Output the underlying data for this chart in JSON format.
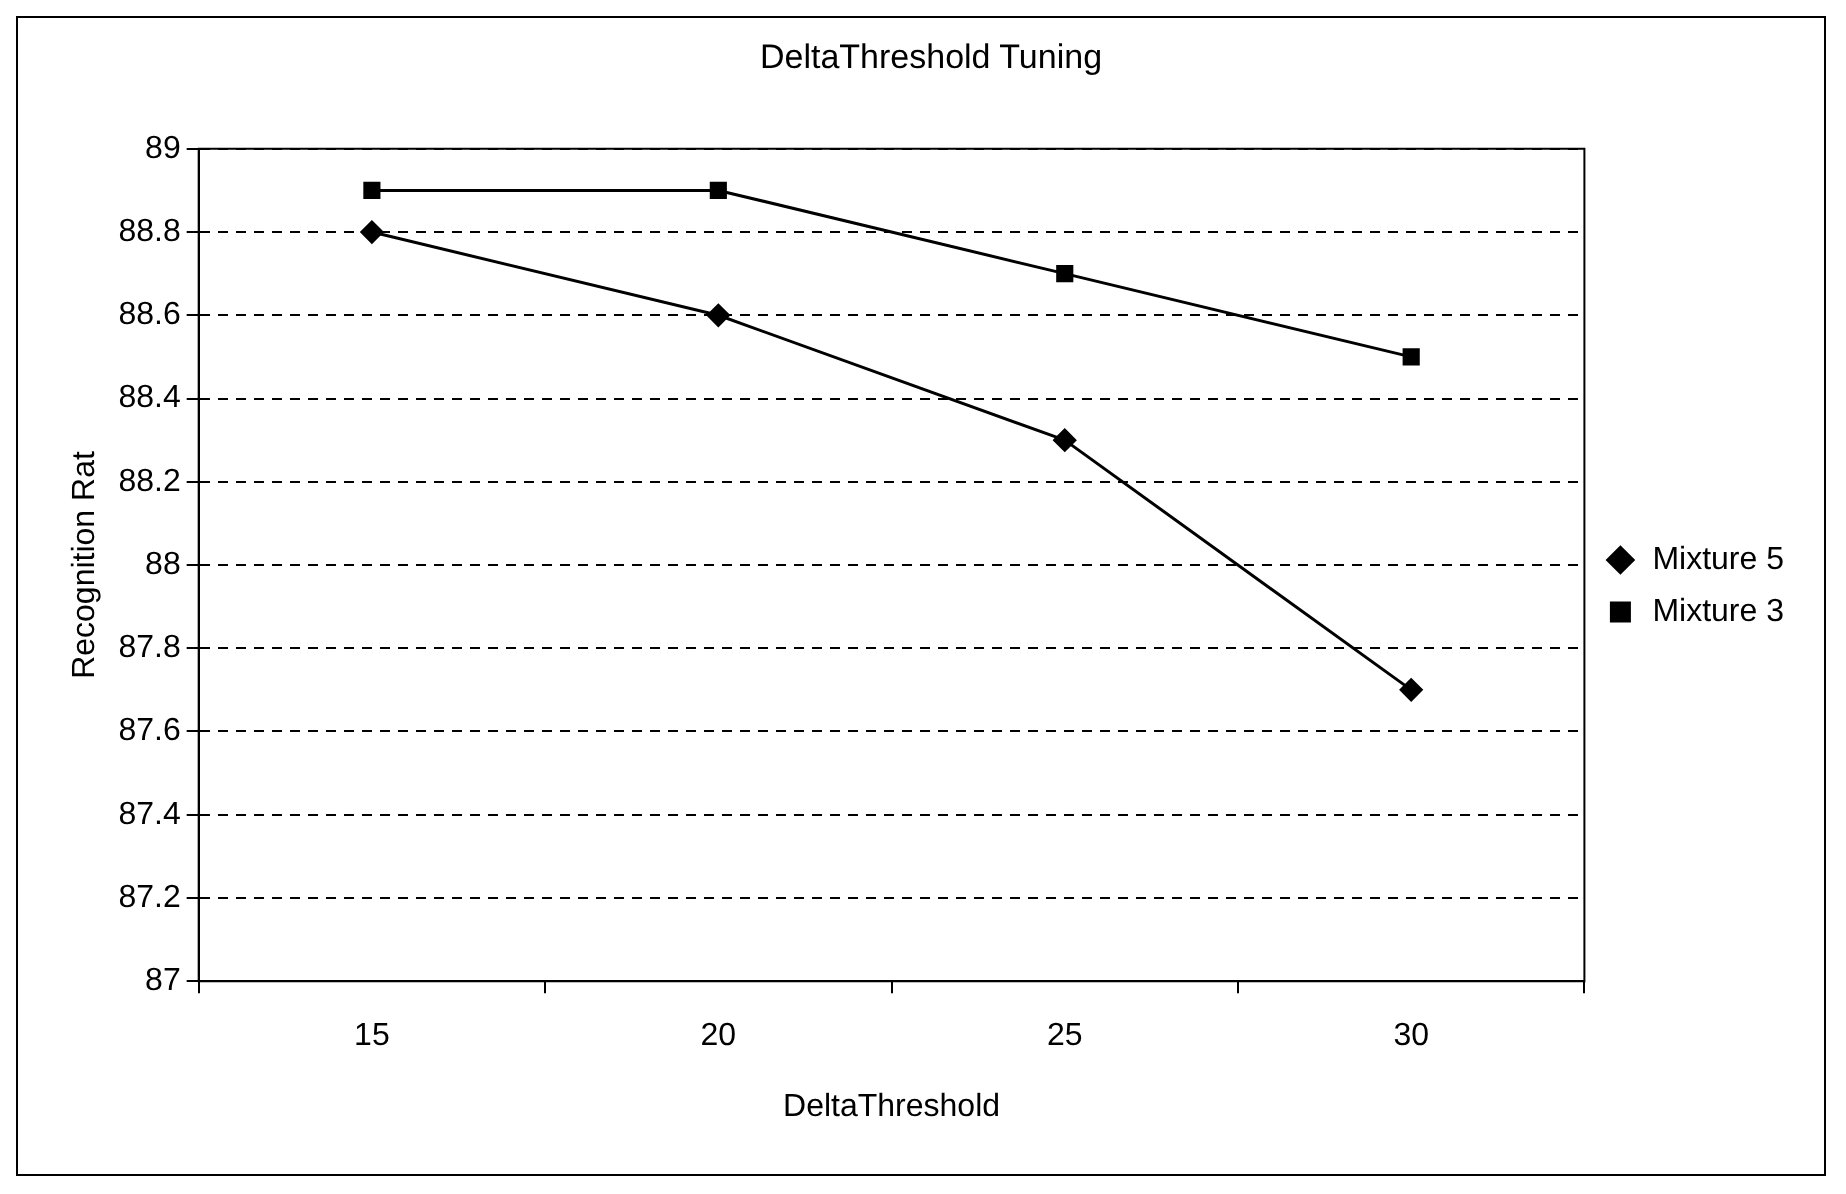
{
  "chart_data": {
    "type": "line",
    "title": "DeltaThreshold Tuning",
    "xlabel": "DeltaThreshold",
    "ylabel": "Recognition Rat",
    "categories": [
      "15",
      "20",
      "25",
      "30"
    ],
    "series": [
      {
        "name": "Mixture 5",
        "color": "#000000",
        "marker": "diamond",
        "values": [
          88.8,
          88.6,
          88.3,
          87.7
        ]
      },
      {
        "name": "Mixture 3",
        "color": "#000000",
        "marker": "square",
        "values": [
          88.9,
          88.9,
          88.7,
          88.5
        ]
      }
    ],
    "ylim": [
      87,
      89
    ],
    "yticks": [
      87,
      87.2,
      87.4,
      87.6,
      87.8,
      88,
      88.2,
      88.4,
      88.6,
      88.8,
      89
    ],
    "grid": "y",
    "legend": "right",
    "line_style": "solid"
  }
}
